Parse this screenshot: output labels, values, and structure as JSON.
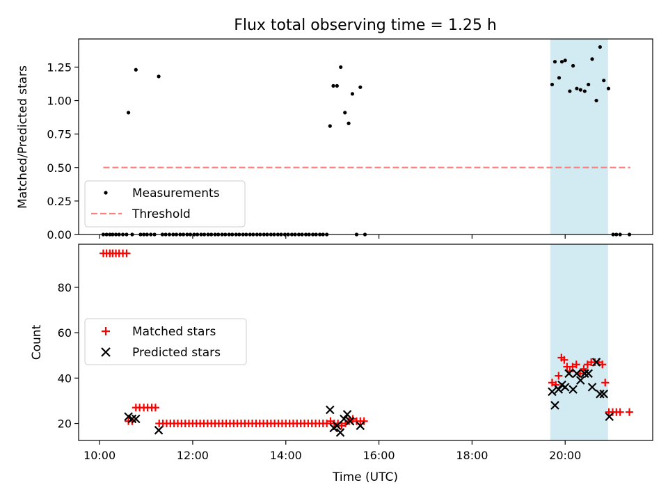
{
  "figure": {
    "title": "Flux total observing time = 1.25 h"
  },
  "chart_data": [
    {
      "type": "scatter",
      "panel": "top",
      "title": "Flux total observing time = 1.25 h",
      "ylabel": "Matched/Predicted stars",
      "xlabel": "",
      "xlim": [
        9.55,
        21.88
      ],
      "ylim": [
        0,
        1.46
      ],
      "y_ticks": [
        0,
        0.25,
        0.5,
        0.75,
        1.0,
        1.25
      ],
      "y_tick_labels": [
        "0.00",
        "0.25",
        "0.50",
        "0.75",
        "1.00",
        "1.25"
      ],
      "grid": false,
      "legend_position": "lower-left",
      "shaded_region": {
        "x_start": 19.68,
        "x_end": 20.92,
        "color": "#add8e6"
      },
      "series": [
        {
          "name": "Measurements",
          "marker": "dot",
          "color": "#000000",
          "points": [
            [
              10.08,
              0
            ],
            [
              10.15,
              0
            ],
            [
              10.22,
              0
            ],
            [
              10.28,
              0
            ],
            [
              10.35,
              0
            ],
            [
              10.42,
              0
            ],
            [
              10.5,
              0
            ],
            [
              10.58,
              0
            ],
            [
              10.62,
              0.91
            ],
            [
              10.78,
              1.23
            ],
            [
              10.7,
              0
            ],
            [
              10.88,
              0
            ],
            [
              10.95,
              0
            ],
            [
              11.02,
              0
            ],
            [
              11.1,
              0
            ],
            [
              11.18,
              0
            ],
            [
              11.27,
              1.18
            ],
            [
              11.35,
              0
            ],
            [
              11.42,
              0
            ],
            [
              11.5,
              0
            ],
            [
              11.58,
              0
            ],
            [
              11.65,
              0
            ],
            [
              11.73,
              0
            ],
            [
              11.8,
              0
            ],
            [
              11.88,
              0
            ],
            [
              11.95,
              0
            ],
            [
              12.03,
              0
            ],
            [
              12.1,
              0
            ],
            [
              12.18,
              0
            ],
            [
              12.25,
              0
            ],
            [
              12.33,
              0
            ],
            [
              12.4,
              0
            ],
            [
              12.48,
              0
            ],
            [
              12.55,
              0
            ],
            [
              12.63,
              0
            ],
            [
              12.7,
              0
            ],
            [
              12.78,
              0
            ],
            [
              12.85,
              0
            ],
            [
              12.93,
              0
            ],
            [
              13.0,
              0
            ],
            [
              13.08,
              0
            ],
            [
              13.15,
              0
            ],
            [
              13.23,
              0
            ],
            [
              13.3,
              0
            ],
            [
              13.38,
              0
            ],
            [
              13.45,
              0
            ],
            [
              13.53,
              0
            ],
            [
              13.6,
              0
            ],
            [
              13.68,
              0
            ],
            [
              13.75,
              0
            ],
            [
              13.83,
              0
            ],
            [
              13.9,
              0
            ],
            [
              13.98,
              0
            ],
            [
              14.05,
              0
            ],
            [
              14.13,
              0
            ],
            [
              14.2,
              0
            ],
            [
              14.28,
              0
            ],
            [
              14.35,
              0
            ],
            [
              14.43,
              0
            ],
            [
              14.5,
              0
            ],
            [
              14.58,
              0
            ],
            [
              14.65,
              0
            ],
            [
              14.73,
              0
            ],
            [
              14.8,
              0
            ],
            [
              14.88,
              0
            ],
            [
              14.95,
              0.81
            ],
            [
              15.02,
              1.11
            ],
            [
              15.1,
              1.11
            ],
            [
              15.18,
              1.25
            ],
            [
              15.27,
              0.91
            ],
            [
              15.35,
              0.83
            ],
            [
              15.43,
              1.05
            ],
            [
              15.52,
              0
            ],
            [
              15.6,
              1.1
            ],
            [
              15.7,
              0
            ],
            [
              19.72,
              1.12
            ],
            [
              19.78,
              1.29
            ],
            [
              19.87,
              1.17
            ],
            [
              19.93,
              1.29
            ],
            [
              20.0,
              1.3
            ],
            [
              20.1,
              1.07
            ],
            [
              20.17,
              1.26
            ],
            [
              20.25,
              1.09
            ],
            [
              20.33,
              1.08
            ],
            [
              20.42,
              1.07
            ],
            [
              20.5,
              1.12
            ],
            [
              20.58,
              1.31
            ],
            [
              20.67,
              1.0
            ],
            [
              20.75,
              1.4
            ],
            [
              20.83,
              1.15
            ],
            [
              20.93,
              1.09
            ],
            [
              21.03,
              0
            ],
            [
              21.1,
              0
            ],
            [
              21.18,
              0
            ],
            [
              21.38,
              0
            ]
          ]
        },
        {
          "name": "Threshold",
          "marker": "dashed-line",
          "color": "#ff7f7f",
          "points": [
            [
              10.08,
              0.5
            ],
            [
              21.4,
              0.5
            ]
          ]
        }
      ]
    },
    {
      "type": "scatter",
      "panel": "bottom",
      "xlabel": "Time (UTC)",
      "ylabel": "Count",
      "xlim": [
        9.55,
        21.88
      ],
      "ylim": [
        12.5,
        99
      ],
      "x_ticks": [
        10,
        12,
        14,
        16,
        18,
        20
      ],
      "x_tick_labels": [
        "10:00",
        "12:00",
        "14:00",
        "16:00",
        "18:00",
        "20:00"
      ],
      "y_ticks": [
        20,
        40,
        60,
        80
      ],
      "y_tick_labels": [
        "20",
        "40",
        "60",
        "80"
      ],
      "grid": false,
      "legend_position": "center-left",
      "shaded_region": {
        "x_start": 19.68,
        "x_end": 20.92,
        "color": "#add8e6"
      },
      "series": [
        {
          "name": "Matched stars",
          "marker": "plus",
          "color": "#ff0000",
          "points": [
            [
              10.08,
              95
            ],
            [
              10.15,
              95
            ],
            [
              10.22,
              95
            ],
            [
              10.28,
              95
            ],
            [
              10.35,
              95
            ],
            [
              10.42,
              95
            ],
            [
              10.5,
              95
            ],
            [
              10.58,
              95
            ],
            [
              10.62,
              21
            ],
            [
              10.7,
              21
            ],
            [
              10.78,
              27
            ],
            [
              10.86,
              27
            ],
            [
              10.95,
              27
            ],
            [
              11.03,
              27
            ],
            [
              11.12,
              27
            ],
            [
              11.2,
              27
            ],
            [
              11.28,
              20
            ],
            [
              11.36,
              20
            ],
            [
              11.44,
              20
            ],
            [
              11.52,
              20
            ],
            [
              11.6,
              20
            ],
            [
              11.68,
              20
            ],
            [
              11.76,
              20
            ],
            [
              11.84,
              20
            ],
            [
              11.92,
              20
            ],
            [
              12.0,
              20
            ],
            [
              12.08,
              20
            ],
            [
              12.16,
              20
            ],
            [
              12.24,
              20
            ],
            [
              12.32,
              20
            ],
            [
              12.4,
              20
            ],
            [
              12.48,
              20
            ],
            [
              12.56,
              20
            ],
            [
              12.64,
              20
            ],
            [
              12.72,
              20
            ],
            [
              12.8,
              20
            ],
            [
              12.88,
              20
            ],
            [
              12.96,
              20
            ],
            [
              13.04,
              20
            ],
            [
              13.12,
              20
            ],
            [
              13.2,
              20
            ],
            [
              13.28,
              20
            ],
            [
              13.36,
              20
            ],
            [
              13.44,
              20
            ],
            [
              13.52,
              20
            ],
            [
              13.6,
              20
            ],
            [
              13.68,
              20
            ],
            [
              13.76,
              20
            ],
            [
              13.84,
              20
            ],
            [
              13.92,
              20
            ],
            [
              14.0,
              20
            ],
            [
              14.08,
              20
            ],
            [
              14.16,
              20
            ],
            [
              14.24,
              20
            ],
            [
              14.32,
              20
            ],
            [
              14.4,
              20
            ],
            [
              14.48,
              20
            ],
            [
              14.56,
              20
            ],
            [
              14.64,
              20
            ],
            [
              14.72,
              20
            ],
            [
              14.8,
              20
            ],
            [
              14.88,
              20
            ],
            [
              14.96,
              21
            ],
            [
              15.04,
              20
            ],
            [
              15.12,
              20
            ],
            [
              15.2,
              19
            ],
            [
              15.28,
              20
            ],
            [
              15.36,
              21
            ],
            [
              15.44,
              22
            ],
            [
              15.52,
              21
            ],
            [
              15.6,
              21
            ],
            [
              15.68,
              21
            ],
            [
              19.72,
              38
            ],
            [
              19.8,
              37
            ],
            [
              19.86,
              41
            ],
            [
              19.92,
              49
            ],
            [
              19.98,
              48
            ],
            [
              20.04,
              45
            ],
            [
              20.1,
              43
            ],
            [
              20.16,
              45
            ],
            [
              20.24,
              46
            ],
            [
              20.32,
              42
            ],
            [
              20.4,
              44
            ],
            [
              20.48,
              46
            ],
            [
              20.56,
              47
            ],
            [
              20.64,
              47
            ],
            [
              20.72,
              47
            ],
            [
              20.8,
              46
            ],
            [
              20.86,
              38
            ],
            [
              20.94,
              25
            ],
            [
              21.02,
              25
            ],
            [
              21.1,
              25
            ],
            [
              21.18,
              25
            ],
            [
              21.38,
              25
            ]
          ]
        },
        {
          "name": "Predicted stars",
          "marker": "x",
          "color": "#000000",
          "points": [
            [
              10.62,
              23
            ],
            [
              10.7,
              22
            ],
            [
              10.78,
              22
            ],
            [
              11.27,
              17
            ],
            [
              14.95,
              26
            ],
            [
              15.03,
              18
            ],
            [
              15.1,
              19
            ],
            [
              15.17,
              16
            ],
            [
              15.25,
              22
            ],
            [
              15.32,
              24
            ],
            [
              15.38,
              21
            ],
            [
              15.6,
              19
            ],
            [
              19.72,
              34
            ],
            [
              19.78,
              28
            ],
            [
              19.86,
              35
            ],
            [
              19.93,
              37
            ],
            [
              20.0,
              36
            ],
            [
              20.08,
              42
            ],
            [
              20.17,
              35
            ],
            [
              20.25,
              42
            ],
            [
              20.33,
              39
            ],
            [
              20.42,
              42
            ],
            [
              20.5,
              42
            ],
            [
              20.58,
              36
            ],
            [
              20.67,
              47
            ],
            [
              20.75,
              33
            ],
            [
              20.83,
              33
            ],
            [
              20.95,
              23
            ]
          ]
        }
      ]
    }
  ]
}
